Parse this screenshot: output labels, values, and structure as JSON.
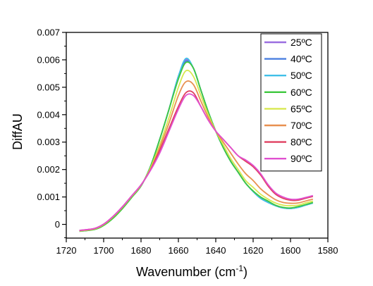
{
  "chart_data": {
    "type": "line",
    "title": "",
    "xlabel": "Wavenumber (cm",
    "xlabel_sup": "-1",
    "xlabel_suffix": ")",
    "ylabel": "DiffAU",
    "xlim": [
      1720,
      1580
    ],
    "ylim": [
      -0.0005,
      0.007
    ],
    "x_reversed": true,
    "x_ticks": [
      "1720",
      "1700",
      "1680",
      "1660",
      "1640",
      "1620",
      "1600",
      "1580"
    ],
    "x_tick_values": [
      1720,
      1700,
      1680,
      1660,
      1640,
      1620,
      1600,
      1580
    ],
    "y_ticks": [
      "0",
      "0.001",
      "0.002",
      "0.003",
      "0.004",
      "0.005",
      "0.006",
      "0.007"
    ],
    "y_tick_values": [
      0,
      0.001,
      0.002,
      0.003,
      0.004,
      0.005,
      0.006,
      0.007
    ],
    "grid": false,
    "legend_position": "top-right",
    "x": [
      1713,
      1705,
      1700,
      1695,
      1690,
      1685,
      1680,
      1675,
      1670,
      1665,
      1660,
      1656,
      1652,
      1648,
      1644,
      1640,
      1636,
      1632,
      1628,
      1624,
      1620,
      1616,
      1612,
      1608,
      1604,
      1600,
      1596,
      1592,
      1588
    ],
    "series": [
      {
        "name": "25ºC",
        "color": "#9a6fe0",
        "values": [
          -0.00025,
          -0.00018,
          -2e-05,
          0.00025,
          0.0006,
          0.001,
          0.0014,
          0.0021,
          0.0031,
          0.0042,
          0.0054,
          0.006,
          0.0057,
          0.0049,
          0.0041,
          0.0034,
          0.0028,
          0.0023,
          0.0019,
          0.0015,
          0.0012,
          0.00095,
          0.0008,
          0.00068,
          0.0006,
          0.00058,
          0.00062,
          0.0007,
          0.00078
        ]
      },
      {
        "name": "40ºC",
        "color": "#4a7fe0",
        "values": [
          -0.00025,
          -0.00018,
          -2e-05,
          0.00025,
          0.0006,
          0.001,
          0.0014,
          0.0021,
          0.0031,
          0.0042,
          0.0054,
          0.00595,
          0.0057,
          0.0049,
          0.0041,
          0.0034,
          0.0028,
          0.0023,
          0.0019,
          0.0015,
          0.0012,
          0.00095,
          0.0008,
          0.00068,
          0.0006,
          0.00058,
          0.00062,
          0.0007,
          0.00078
        ]
      },
      {
        "name": "50ºC",
        "color": "#40c0e8",
        "values": [
          -0.00025,
          -0.00018,
          -2e-05,
          0.00025,
          0.0006,
          0.001,
          0.0014,
          0.0021,
          0.0031,
          0.0042,
          0.0054,
          0.00605,
          0.0057,
          0.0049,
          0.0041,
          0.0034,
          0.0028,
          0.0023,
          0.0019,
          0.0015,
          0.0012,
          0.00095,
          0.0008,
          0.00068,
          0.0006,
          0.00058,
          0.00062,
          0.0007,
          0.00078
        ]
      },
      {
        "name": "60ºC",
        "color": "#3ec83e",
        "values": [
          -0.00025,
          -0.00019,
          -4e-05,
          0.00022,
          0.00057,
          0.00098,
          0.0014,
          0.0021,
          0.0031,
          0.0042,
          0.0053,
          0.0059,
          0.0057,
          0.0049,
          0.0041,
          0.0034,
          0.0028,
          0.0023,
          0.0019,
          0.0015,
          0.00122,
          0.001,
          0.00085,
          0.0007,
          0.00062,
          0.0006,
          0.00065,
          0.00072,
          0.0008
        ]
      },
      {
        "name": "65ºC",
        "color": "#d8e850",
        "values": [
          -0.00024,
          -0.00017,
          -1e-05,
          0.00027,
          0.00062,
          0.00102,
          0.00142,
          0.00205,
          0.0029,
          0.0039,
          0.005,
          0.0056,
          0.0054,
          0.0047,
          0.004,
          0.0034,
          0.0029,
          0.0024,
          0.002,
          0.0016,
          0.00135,
          0.0011,
          0.00092,
          0.00078,
          0.0007,
          0.00068,
          0.0007,
          0.00078,
          0.00085
        ]
      },
      {
        "name": "70ºC",
        "color": "#e89050",
        "values": [
          -0.00023,
          -0.00016,
          0.0,
          0.00028,
          0.00063,
          0.00103,
          0.00143,
          0.002,
          0.0028,
          0.0037,
          0.0047,
          0.0052,
          0.0051,
          0.0045,
          0.0039,
          0.0034,
          0.003,
          0.0026,
          0.0022,
          0.00185,
          0.0016,
          0.0013,
          0.00108,
          0.0009,
          0.0008,
          0.00077,
          0.00078,
          0.00085,
          0.00092
        ]
      },
      {
        "name": "80ºC",
        "color": "#e04060",
        "values": [
          -0.00022,
          -0.00015,
          1e-05,
          0.00029,
          0.00064,
          0.00104,
          0.00144,
          0.00198,
          0.0027,
          0.0035,
          0.0043,
          0.0048,
          0.0048,
          0.0043,
          0.0038,
          0.0034,
          0.0031,
          0.0028,
          0.0025,
          0.0023,
          0.0021,
          0.0018,
          0.0014,
          0.0011,
          0.00095,
          0.00088,
          0.00088,
          0.00095,
          0.00102
        ]
      },
      {
        "name": "90ºC",
        "color": "#e050d0",
        "values": [
          -0.00022,
          -0.00015,
          1e-05,
          0.00029,
          0.00064,
          0.00104,
          0.00144,
          0.00196,
          0.0026,
          0.0034,
          0.0042,
          0.0047,
          0.0047,
          0.0043,
          0.0038,
          0.0034,
          0.0031,
          0.0028,
          0.0025,
          0.00235,
          0.00215,
          0.00185,
          0.00145,
          0.00115,
          0.001,
          0.00092,
          0.00092,
          0.00098,
          0.00105
        ]
      }
    ]
  }
}
